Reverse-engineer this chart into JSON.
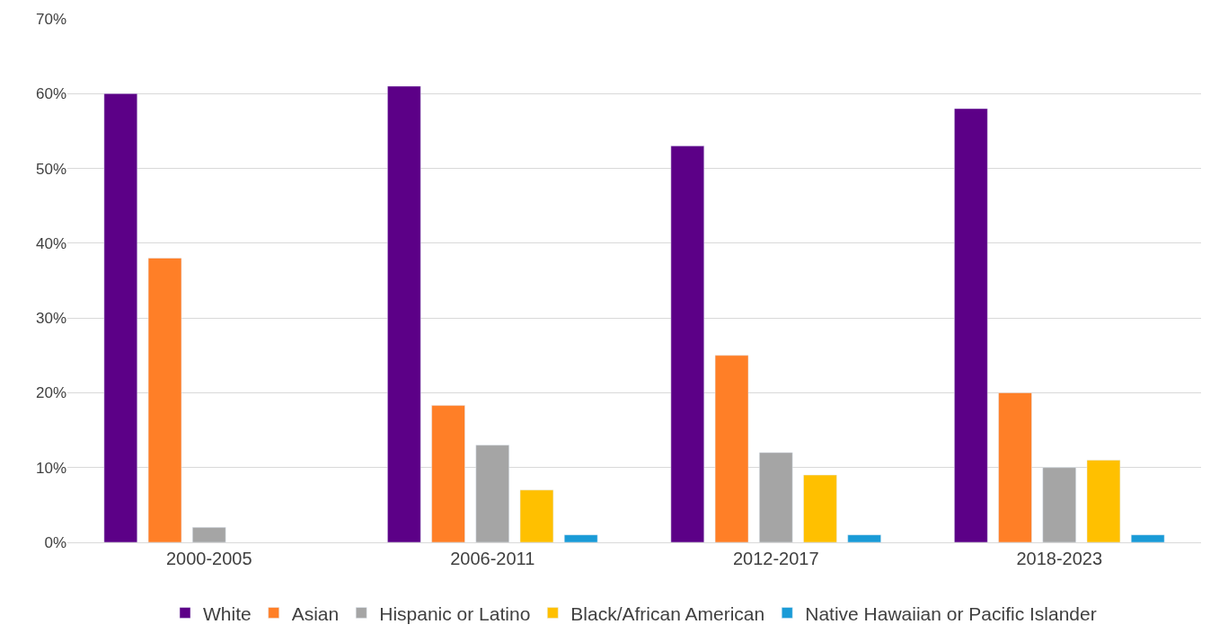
{
  "chart_data": {
    "type": "bar",
    "categories": [
      "2000-2005",
      "2006-2011",
      "2012-2017",
      "2018-2023"
    ],
    "series": [
      {
        "name": "White",
        "color": "#5c0087",
        "values": [
          60,
          61,
          53,
          58
        ]
      },
      {
        "name": "Asian",
        "color": "#ff7f27",
        "values": [
          38,
          18.3,
          25,
          20
        ]
      },
      {
        "name": "Hispanic or Latino",
        "color": "#a5a5a5",
        "values": [
          2,
          13,
          12,
          10
        ]
      },
      {
        "name": "Black/African American",
        "color": "#ffc000",
        "values": [
          null,
          7,
          9,
          11
        ]
      },
      {
        "name": "Native Hawaiian or Pacific Islander",
        "color": "#1a9bd7",
        "values": [
          null,
          1,
          1,
          1
        ]
      }
    ],
    "ylim": [
      0,
      70
    ],
    "yticks": [
      {
        "value": 0,
        "label": "0%"
      },
      {
        "value": 10,
        "label": "10%"
      },
      {
        "value": 20,
        "label": "20%"
      },
      {
        "value": 30,
        "label": "30%"
      },
      {
        "value": 40,
        "label": "40%"
      },
      {
        "value": 50,
        "label": "50%"
      },
      {
        "value": 60,
        "label": "60%"
      },
      {
        "value": 70,
        "label": "70%"
      }
    ],
    "grid": "y",
    "legend": "bottom"
  }
}
